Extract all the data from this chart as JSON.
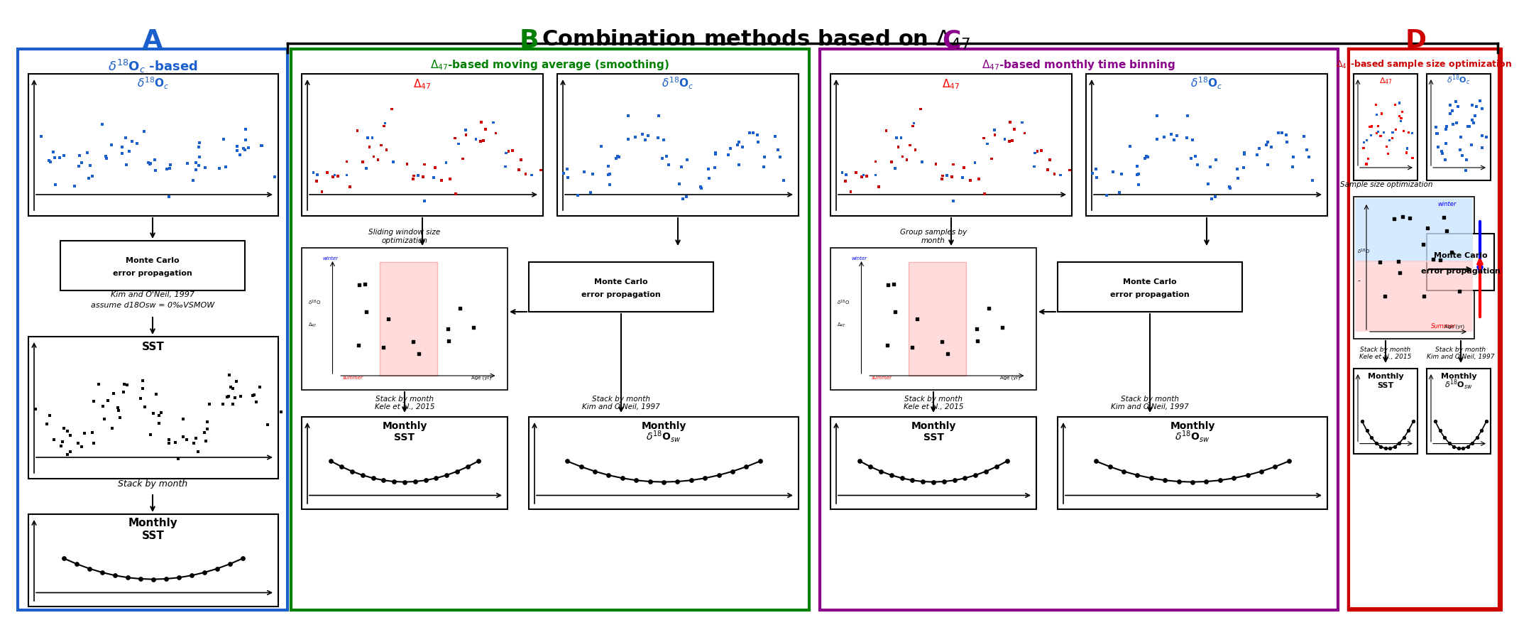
{
  "title": "Combination methods based on Δ₄₇",
  "title_fontsize": 22,
  "bg_color": "#ffffff",
  "section_A": {
    "label": "A",
    "label_color": "#1a5fcc",
    "border_color": "#1a5fcc",
    "subtitle": "δ¹⁸Oₙ -based",
    "subtitle_color": "#1a5fcc"
  },
  "section_B": {
    "label": "B",
    "label_color": "#008000",
    "border_color": "#008000",
    "subtitle": "Δ₄₇-based moving average (smoothing)"
  },
  "section_C": {
    "label": "C",
    "label_color": "#8b008b",
    "border_color": "#8b008b",
    "subtitle": "Δ₄₇-based monthly time binning"
  },
  "section_D": {
    "label": "D",
    "label_color": "#cc0000",
    "border_color": "#cc0000",
    "subtitle": "Δ₄₇-based sample size optimization"
  },
  "colors": {
    "blue_dot": "#1a5fcc",
    "red_dot": "#cc0000",
    "black_dot": "#000000",
    "arrow": "#000000",
    "box_border": "#000000"
  }
}
